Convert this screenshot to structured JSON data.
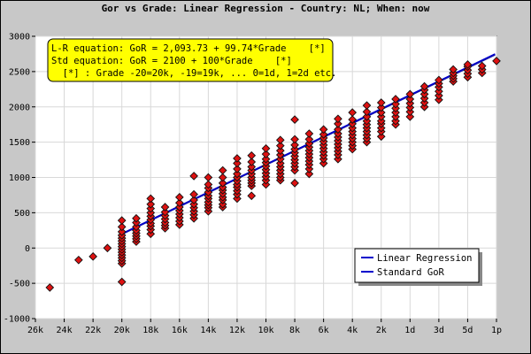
{
  "chart_data": {
    "type": "scatter",
    "title": "Gor vs Grade: Linear Regression - Country: NL; When: now",
    "xlabel": "",
    "ylabel": "",
    "x_ticks": [
      {
        "value": -25,
        "label": "26k"
      },
      {
        "value": -23,
        "label": "24k"
      },
      {
        "value": -21,
        "label": "22k"
      },
      {
        "value": -19,
        "label": "20k"
      },
      {
        "value": -17,
        "label": "18k"
      },
      {
        "value": -15,
        "label": "16k"
      },
      {
        "value": -13,
        "label": "14k"
      },
      {
        "value": -11,
        "label": "12k"
      },
      {
        "value": -9,
        "label": "10k"
      },
      {
        "value": -7,
        "label": "8k"
      },
      {
        "value": -5,
        "label": "6k"
      },
      {
        "value": -3,
        "label": "4k"
      },
      {
        "value": -1,
        "label": "2k"
      },
      {
        "value": 1,
        "label": "1d"
      },
      {
        "value": 3,
        "label": "3d"
      },
      {
        "value": 5,
        "label": "5d"
      },
      {
        "value": 7,
        "label": "1p"
      }
    ],
    "xlim": [
      -25,
      7
    ],
    "ylim": [
      -1000,
      3000
    ],
    "y_ticks": [
      -1000,
      -500,
      0,
      500,
      1000,
      1500,
      2000,
      2500,
      3000
    ],
    "grid": true,
    "equations": [
      "L-R equation: GoR = 2,093.73 + 99.74*Grade    [*]",
      "Std equation: GoR = 2100 + 100*Grade    [*]",
      "  [*] : Grade -20=20k, -19=19k, ... 0=1d, 1=2d etc."
    ],
    "legend_position": "bottom-right",
    "legend": [
      {
        "name": "Linear Regression",
        "color": "#0000cc"
      },
      {
        "name": "Standard GoR",
        "color": "#0000cc"
      }
    ],
    "lines": [
      {
        "name": "Linear Regression",
        "intercept": 2093.73,
        "slope": 99.74,
        "x_range": [
          -19,
          6
        ],
        "color": "#1a1aa0"
      },
      {
        "name": "Standard GoR",
        "intercept": 2100,
        "slope": 100,
        "x_range": [
          -19,
          6
        ],
        "color": "#0000cc"
      }
    ],
    "point_color": "#dd1111",
    "series": [
      {
        "x": -24,
        "values": [
          -560
        ]
      },
      {
        "x": -22,
        "values": [
          -170
        ]
      },
      {
        "x": -21,
        "values": [
          -120
        ]
      },
      {
        "x": -20,
        "values": [
          0
        ]
      },
      {
        "x": -19,
        "values": [
          -480,
          -220,
          -180,
          -140,
          -100,
          -60,
          -20,
          20,
          60,
          100,
          140,
          180,
          230,
          300,
          390
        ]
      },
      {
        "x": -18,
        "values": [
          90,
          130,
          170,
          210,
          250,
          300,
          360,
          420
        ]
      },
      {
        "x": -17,
        "values": [
          200,
          260,
          310,
          350,
          400,
          450,
          500,
          560,
          620,
          700
        ]
      },
      {
        "x": -16,
        "values": [
          280,
          320,
          360,
          410,
          460,
          510,
          580
        ]
      },
      {
        "x": -15,
        "values": [
          330,
          380,
          430,
          480,
          530,
          580,
          640,
          720
        ]
      },
      {
        "x": -14,
        "values": [
          420,
          470,
          520,
          570,
          620,
          680,
          760,
          1020
        ]
      },
      {
        "x": -13,
        "values": [
          520,
          570,
          610,
          650,
          700,
          740,
          790,
          850,
          900,
          1000
        ]
      },
      {
        "x": -12,
        "values": [
          580,
          620,
          680,
          720,
          770,
          820,
          860,
          920,
          1000,
          1100
        ]
      },
      {
        "x": -11,
        "values": [
          700,
          760,
          810,
          860,
          900,
          950,
          1000,
          1050,
          1120,
          1200,
          1270
        ]
      },
      {
        "x": -10,
        "values": [
          740,
          880,
          920,
          960,
          1000,
          1050,
          1100,
          1150,
          1220,
          1310
        ]
      },
      {
        "x": -9,
        "values": [
          900,
          960,
          1010,
          1060,
          1110,
          1160,
          1210,
          1260,
          1330,
          1410
        ]
      },
      {
        "x": -8,
        "values": [
          960,
          1000,
          1050,
          1100,
          1150,
          1200,
          1260,
          1320,
          1380,
          1450,
          1530
        ]
      },
      {
        "x": -7,
        "values": [
          920,
          1100,
          1150,
          1200,
          1250,
          1300,
          1350,
          1400,
          1460,
          1540,
          1820
        ]
      },
      {
        "x": -6,
        "values": [
          1050,
          1120,
          1180,
          1230,
          1280,
          1330,
          1380,
          1430,
          1480,
          1540,
          1620
        ]
      },
      {
        "x": -5,
        "values": [
          1200,
          1260,
          1310,
          1360,
          1410,
          1460,
          1510,
          1560,
          1610,
          1680
        ]
      },
      {
        "x": -4,
        "values": [
          1260,
          1320,
          1370,
          1420,
          1470,
          1520,
          1570,
          1620,
          1680,
          1760,
          1830
        ]
      },
      {
        "x": -3,
        "values": [
          1400,
          1450,
          1500,
          1550,
          1600,
          1650,
          1700,
          1760,
          1820,
          1920
        ]
      },
      {
        "x": -2,
        "values": [
          1500,
          1550,
          1600,
          1650,
          1700,
          1750,
          1800,
          1860,
          1930,
          2020
        ]
      },
      {
        "x": -1,
        "values": [
          1580,
          1650,
          1700,
          1760,
          1800,
          1860,
          1920,
          1990,
          2060
        ]
      },
      {
        "x": 0,
        "values": [
          1750,
          1800,
          1860,
          1920,
          1980,
          2040,
          2110
        ]
      },
      {
        "x": 1,
        "values": [
          1860,
          1930,
          1990,
          2050,
          2110,
          2180
        ]
      },
      {
        "x": 2,
        "values": [
          2000,
          2060,
          2120,
          2180,
          2240,
          2290
        ]
      },
      {
        "x": 3,
        "values": [
          2100,
          2160,
          2220,
          2280,
          2330,
          2380
        ]
      },
      {
        "x": 4,
        "values": [
          2360,
          2400,
          2440,
          2480,
          2530
        ]
      },
      {
        "x": 5,
        "values": [
          2420,
          2470,
          2520,
          2570,
          2600
        ]
      },
      {
        "x": 6,
        "values": [
          2480,
          2530,
          2580
        ]
      },
      {
        "x": 7,
        "values": [
          2650
        ]
      }
    ]
  }
}
